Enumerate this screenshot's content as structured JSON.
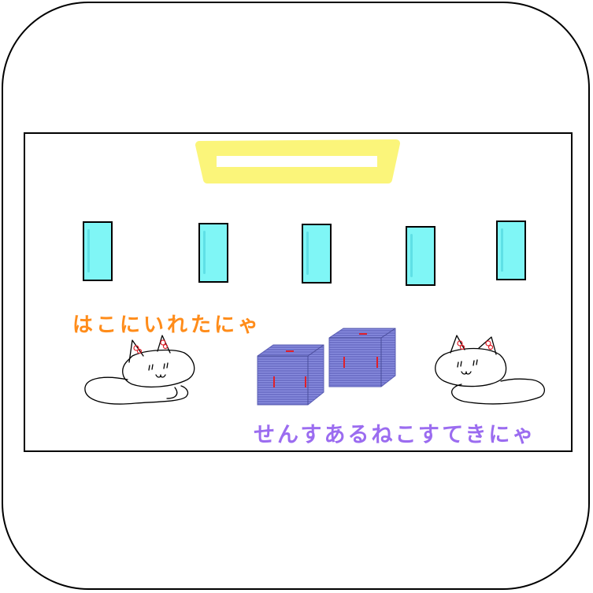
{
  "captions": {
    "top": "はこにいれたにゃ",
    "bottom": "せんすあるねこすてきにゃ"
  },
  "colors": {
    "handle": "#fbf57a",
    "card": "#7ff6f6",
    "box": "#6f72c9",
    "top_caption": "#ff8c1a",
    "bottom_caption": "#9b6cf0",
    "ear_mark": "#e0202a"
  },
  "icons": [
    "cat-drawing-left",
    "cat-drawing-right",
    "gift-box-left",
    "gift-box-right",
    "handle-shape"
  ]
}
